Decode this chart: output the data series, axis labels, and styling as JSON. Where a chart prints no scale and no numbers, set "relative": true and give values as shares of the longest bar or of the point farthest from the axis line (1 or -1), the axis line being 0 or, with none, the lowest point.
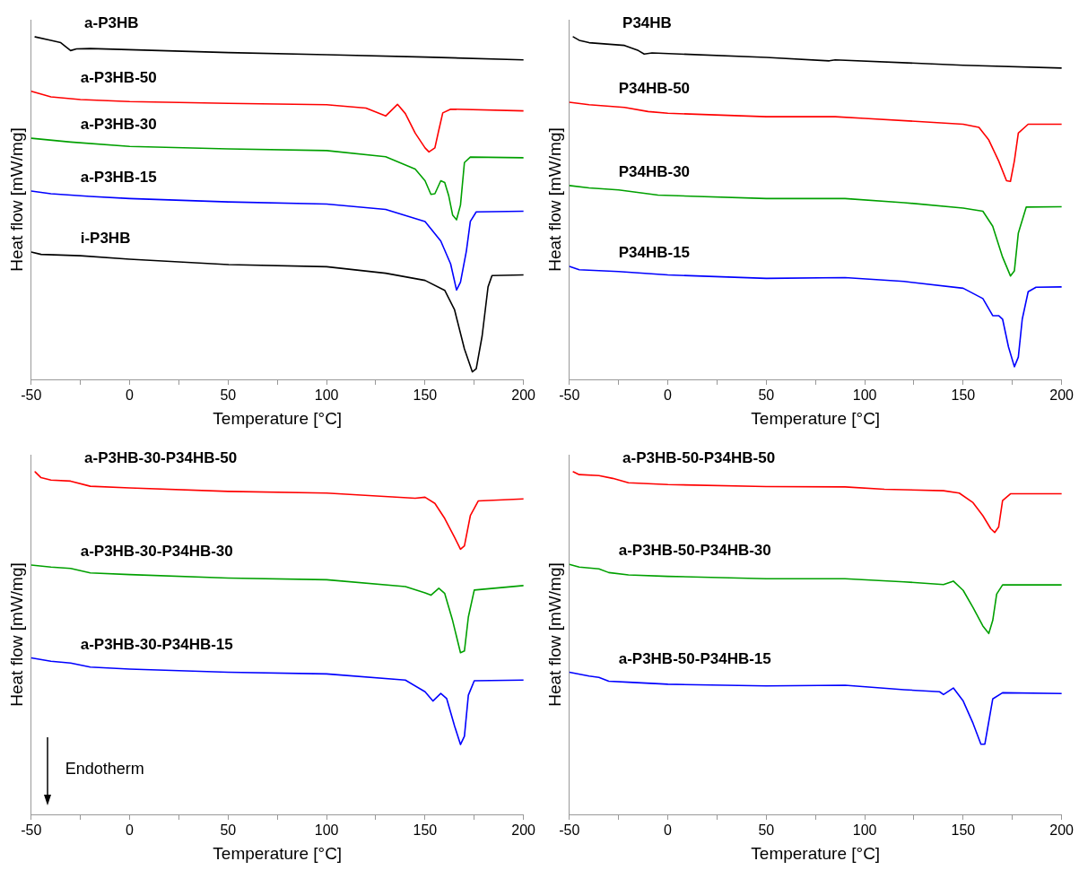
{
  "chart_data": [
    {
      "type": "line",
      "xlabel": "Temperature [°C]",
      "ylabel": "Heat flow [mW/mg]",
      "relative": true,
      "legend": false,
      "grid": false,
      "marker": "none",
      "line_style": "solid",
      "xlim": [
        -50,
        200
      ],
      "xticks": [
        -50,
        {
          "value": -25,
          "label": null
        },
        0,
        {
          "value": 25,
          "label": null
        },
        50,
        {
          "value": 75,
          "label": null
        },
        100,
        {
          "value": 125,
          "label": null
        },
        150,
        {
          "value": 175,
          "label": null
        },
        200
      ],
      "series": [
        {
          "name": "a-P3HB",
          "color": "#000000",
          "x": [
            -48,
            -40,
            -35,
            -32,
            -30,
            -27,
            -20,
            50,
            100,
            150,
            200
          ],
          "values": [
            1.0,
            0.99,
            0.983,
            0.969,
            0.96,
            0.965,
            0.966,
            0.954,
            0.948,
            0.941,
            0.933
          ]
        },
        {
          "name": "a-P3HB-50",
          "color": "#ff0000",
          "x": [
            -50,
            -40,
            -25,
            0,
            50,
            100,
            120,
            130,
            136,
            140,
            145,
            150,
            152,
            155,
            157,
            159,
            163,
            200
          ],
          "values": [
            0.841,
            0.825,
            0.817,
            0.811,
            0.806,
            0.802,
            0.792,
            0.769,
            0.803,
            0.776,
            0.719,
            0.676,
            0.664,
            0.676,
            0.728,
            0.778,
            0.789,
            0.784
          ]
        },
        {
          "name": "a-P3HB-30",
          "color": "#00a000",
          "x": [
            -50,
            -30,
            0,
            50,
            100,
            130,
            145,
            150,
            153,
            155,
            158,
            160,
            162,
            164,
            166,
            168,
            170,
            173,
            200
          ],
          "values": [
            0.704,
            0.693,
            0.68,
            0.673,
            0.668,
            0.65,
            0.614,
            0.58,
            0.54,
            0.542,
            0.58,
            0.575,
            0.537,
            0.48,
            0.466,
            0.509,
            0.633,
            0.649,
            0.647
          ]
        },
        {
          "name": "a-P3HB-15",
          "color": "#0000ff",
          "x": [
            -50,
            -40,
            -20,
            0,
            50,
            100,
            130,
            150,
            158,
            163,
            166,
            168,
            171,
            173,
            176,
            200
          ],
          "values": [
            0.55,
            0.542,
            0.534,
            0.528,
            0.518,
            0.512,
            0.496,
            0.461,
            0.404,
            0.337,
            0.261,
            0.284,
            0.375,
            0.461,
            0.489,
            0.491
          ]
        },
        {
          "name": "i-P3HB",
          "color": "#000000",
          "x": [
            -50,
            -45,
            -25,
            0,
            50,
            100,
            130,
            150,
            160,
            165,
            170,
            174,
            176,
            179,
            182,
            184,
            200
          ],
          "values": [
            0.372,
            0.365,
            0.361,
            0.351,
            0.335,
            0.329,
            0.31,
            0.289,
            0.26,
            0.203,
            0.089,
            0.022,
            0.031,
            0.127,
            0.27,
            0.303,
            0.305
          ]
        }
      ]
    },
    {
      "type": "line",
      "xlabel": "Temperature [°C]",
      "ylabel": "Heat flow [mW/mg]",
      "relative": true,
      "legend": false,
      "grid": false,
      "marker": "none",
      "line_style": "solid",
      "xlim": [
        -50,
        200
      ],
      "xticks": [
        -50,
        {
          "value": -25,
          "label": null
        },
        0,
        {
          "value": 25,
          "label": null
        },
        50,
        {
          "value": 75,
          "label": null
        },
        100,
        {
          "value": 125,
          "label": null
        },
        150,
        {
          "value": 175,
          "label": null
        },
        200
      ],
      "series": [
        {
          "name": "P34HB",
          "color": "#000000",
          "x": [
            -48,
            -45,
            -40,
            -22,
            -15,
            -12,
            -8,
            50,
            82,
            85,
            150,
            200
          ],
          "values": [
            1.0,
            0.99,
            0.983,
            0.975,
            0.96,
            0.95,
            0.953,
            0.94,
            0.93,
            0.933,
            0.917,
            0.909
          ]
        },
        {
          "name": "P34HB-50",
          "color": "#ff0000",
          "x": [
            -50,
            -40,
            -22,
            -10,
            0,
            50,
            85,
            100,
            150,
            158,
            163,
            168,
            172,
            174,
            176,
            178,
            183,
            200
          ],
          "values": [
            0.809,
            0.802,
            0.794,
            0.782,
            0.777,
            0.767,
            0.767,
            0.762,
            0.745,
            0.736,
            0.699,
            0.638,
            0.58,
            0.578,
            0.638,
            0.719,
            0.745,
            0.745
          ]
        },
        {
          "name": "P34HB-30",
          "color": "#00a000",
          "x": [
            -50,
            -40,
            -25,
            -5,
            50,
            90,
            120,
            150,
            160,
            165,
            170,
            174,
            176,
            178,
            182,
            200
          ],
          "values": [
            0.566,
            0.559,
            0.553,
            0.538,
            0.528,
            0.528,
            0.516,
            0.5,
            0.491,
            0.447,
            0.357,
            0.302,
            0.317,
            0.427,
            0.503,
            0.504
          ]
        },
        {
          "name": "P34HB-15",
          "color": "#0000ff",
          "x": [
            -50,
            -45,
            -25,
            0,
            50,
            90,
            120,
            150,
            160,
            165,
            168,
            170,
            173,
            176,
            178,
            180,
            183,
            187,
            200
          ],
          "values": [
            0.33,
            0.32,
            0.315,
            0.305,
            0.295,
            0.297,
            0.286,
            0.266,
            0.236,
            0.186,
            0.186,
            0.176,
            0.095,
            0.037,
            0.065,
            0.176,
            0.256,
            0.269,
            0.27
          ]
        }
      ]
    },
    {
      "type": "line",
      "xlabel": "Temperature [°C]",
      "ylabel": "Heat flow [mW/mg]",
      "relative": true,
      "legend": false,
      "grid": false,
      "marker": "none",
      "line_style": "solid",
      "xlim": [
        -50,
        200
      ],
      "xticks": [
        -50,
        {
          "value": -25,
          "label": null
        },
        0,
        {
          "value": 25,
          "label": null
        },
        50,
        {
          "value": 75,
          "label": null
        },
        100,
        {
          "value": 125,
          "label": null
        },
        150,
        {
          "value": 175,
          "label": null
        },
        200
      ],
      "annotations": [
        "Endotherm"
      ],
      "series": [
        {
          "name": "a-P3HB-30-P34HB-50",
          "color": "#ff0000",
          "x": [
            -48,
            -45,
            -40,
            -30,
            -20,
            0,
            50,
            100,
            145,
            150,
            155,
            160,
            165,
            168,
            170,
            173,
            177,
            200
          ],
          "values": [
            1.0,
            0.983,
            0.976,
            0.973,
            0.958,
            0.953,
            0.943,
            0.938,
            0.923,
            0.926,
            0.908,
            0.864,
            0.809,
            0.774,
            0.784,
            0.872,
            0.915,
            0.921
          ]
        },
        {
          "name": "a-P3HB-30-P34HB-30",
          "color": "#00a000",
          "x": [
            -50,
            -40,
            -30,
            -20,
            0,
            50,
            100,
            140,
            150,
            153,
            157,
            160,
            164,
            168,
            170,
            172,
            175,
            200
          ],
          "values": [
            0.728,
            0.722,
            0.718,
            0.705,
            0.7,
            0.69,
            0.685,
            0.665,
            0.647,
            0.64,
            0.66,
            0.645,
            0.566,
            0.472,
            0.477,
            0.576,
            0.655,
            0.668
          ]
        },
        {
          "name": "a-P3HB-30-P34HB-15",
          "color": "#0000ff",
          "x": [
            -50,
            -40,
            -30,
            -20,
            0,
            50,
            100,
            140,
            150,
            154,
            158,
            161,
            165,
            168,
            170,
            172,
            175,
            200
          ],
          "values": [
            0.457,
            0.447,
            0.442,
            0.43,
            0.424,
            0.415,
            0.41,
            0.392,
            0.358,
            0.331,
            0.353,
            0.338,
            0.258,
            0.204,
            0.228,
            0.348,
            0.39,
            0.392
          ]
        }
      ]
    },
    {
      "type": "line",
      "xlabel": "Temperature [°C]",
      "ylabel": "Heat flow [mW/mg]",
      "relative": true,
      "legend": false,
      "grid": false,
      "marker": "none",
      "line_style": "solid",
      "xlim": [
        -50,
        200
      ],
      "xticks": [
        -50,
        {
          "value": -25,
          "label": null
        },
        0,
        {
          "value": 25,
          "label": null
        },
        50,
        {
          "value": 75,
          "label": null
        },
        100,
        {
          "value": 125,
          "label": null
        },
        150,
        {
          "value": 175,
          "label": null
        },
        200
      ],
      "series": [
        {
          "name": "a-P3HB-50-P34HB-50",
          "color": "#ff0000",
          "x": [
            -48,
            -45,
            -35,
            -28,
            -20,
            0,
            50,
            90,
            110,
            140,
            148,
            155,
            160,
            164,
            166,
            168,
            170,
            174,
            200
          ],
          "values": [
            1.0,
            0.992,
            0.989,
            0.981,
            0.968,
            0.963,
            0.957,
            0.956,
            0.949,
            0.945,
            0.938,
            0.91,
            0.872,
            0.834,
            0.823,
            0.839,
            0.916,
            0.936,
            0.936
          ]
        },
        {
          "name": "a-P3HB-50-P34HB-30",
          "color": "#00a000",
          "x": [
            -50,
            -45,
            -35,
            -30,
            -20,
            0,
            50,
            90,
            120,
            140,
            145,
            150,
            155,
            160,
            163,
            165,
            167,
            170,
            200
          ],
          "values": [
            0.73,
            0.722,
            0.717,
            0.706,
            0.699,
            0.695,
            0.688,
            0.688,
            0.679,
            0.671,
            0.681,
            0.654,
            0.604,
            0.55,
            0.528,
            0.566,
            0.643,
            0.67,
            0.67
          ]
        },
        {
          "name": "a-P3HB-50-P34HB-15",
          "color": "#0000ff",
          "x": [
            -50,
            -40,
            -35,
            -30,
            -20,
            0,
            50,
            90,
            120,
            138,
            140,
            145,
            150,
            155,
            159,
            161,
            163,
            165,
            170,
            200
          ],
          "values": [
            0.415,
            0.404,
            0.4,
            0.389,
            0.386,
            0.38,
            0.375,
            0.377,
            0.364,
            0.358,
            0.35,
            0.369,
            0.331,
            0.266,
            0.205,
            0.205,
            0.271,
            0.337,
            0.355,
            0.353
          ]
        }
      ]
    }
  ]
}
